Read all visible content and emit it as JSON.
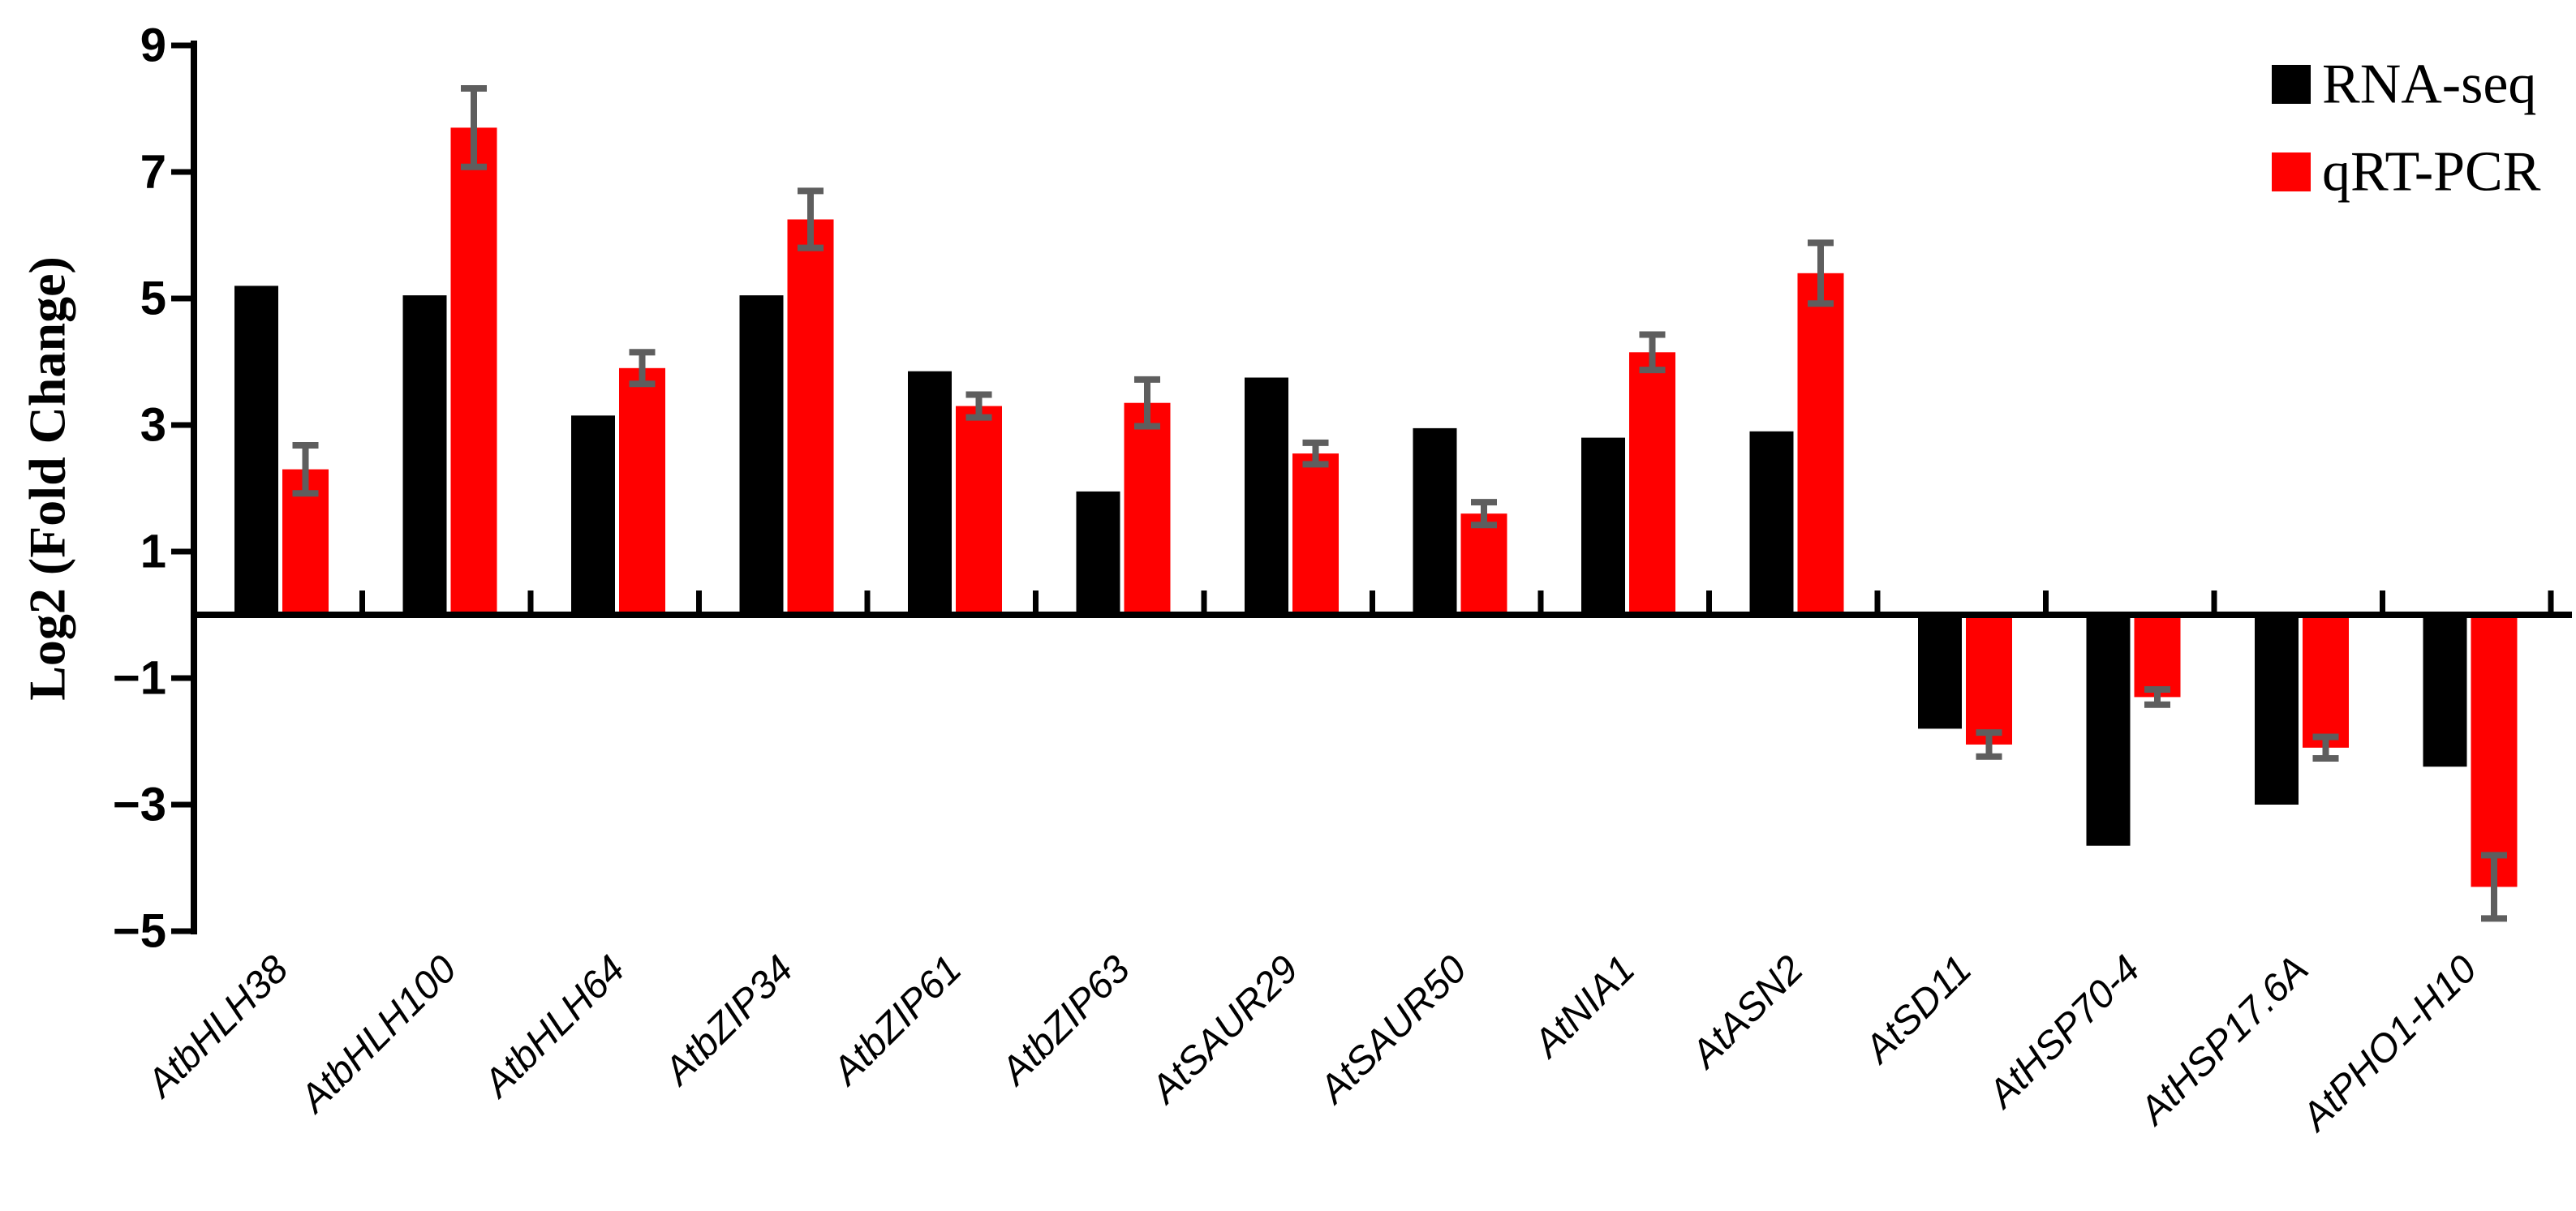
{
  "chart_data": {
    "type": "bar",
    "title": "",
    "xlabel": "",
    "ylabel": "Log2 (Fold Change)",
    "ylim": [
      -5,
      9
    ],
    "yticks": [
      9,
      7,
      5,
      3,
      1,
      -1,
      -3,
      -5
    ],
    "grid": false,
    "legend_position": "top-right",
    "background_color": "#ffffff",
    "axis_color": "#000000",
    "error_bar_color": "#5e5e5e",
    "categories": [
      "AtbHLH38",
      "AtbHLH100",
      "AtbHLH64",
      "AtbZIP34",
      "AtbZIP61",
      "AtbZIP63",
      "AtSAUR29",
      "AtSAUR50",
      "AtNIA1",
      "AtASN2",
      "AtSD11",
      "AtHSP70-4",
      "AtHSP17.6A",
      "AtPHO1-H10"
    ],
    "series": [
      {
        "name": "RNA-seq",
        "color": "#000000",
        "values": [
          5.2,
          5.05,
          3.15,
          5.05,
          3.85,
          1.95,
          3.75,
          2.95,
          2.8,
          2.9,
          -1.8,
          -3.65,
          -3.0,
          -2.4
        ]
      },
      {
        "name": "qRT-PCR",
        "color": "#ff0000",
        "values": [
          2.3,
          7.7,
          3.9,
          6.25,
          3.3,
          3.35,
          2.55,
          1.6,
          4.15,
          5.4,
          -2.05,
          -1.3,
          -2.1,
          -4.3
        ],
        "errors": [
          0.38,
          0.62,
          0.25,
          0.45,
          0.18,
          0.37,
          0.17,
          0.18,
          0.28,
          0.48,
          0.19,
          0.12,
          0.17,
          0.5
        ]
      }
    ]
  },
  "legend": {
    "items": [
      {
        "label": "RNA-seq",
        "color": "#000000"
      },
      {
        "label": "qRT-PCR",
        "color": "#ff0000"
      }
    ]
  }
}
